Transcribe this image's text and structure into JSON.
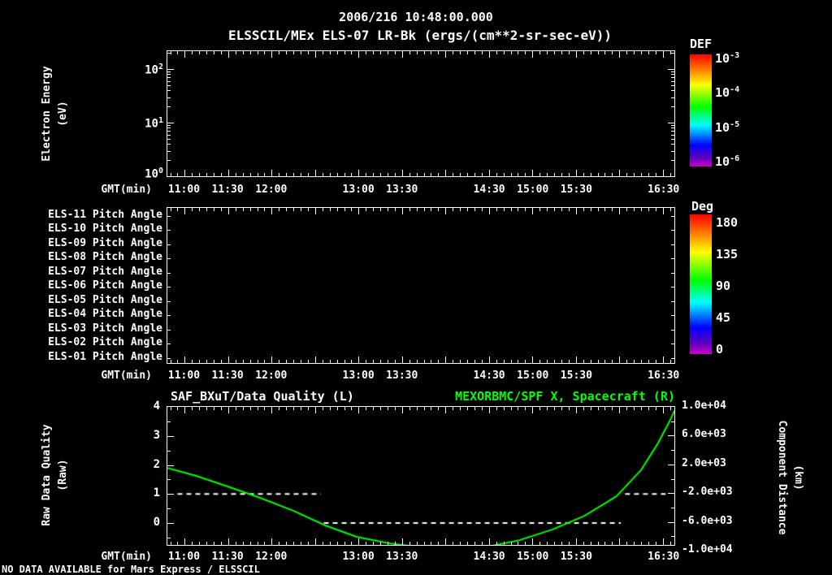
{
  "colors": {
    "background": "#000000",
    "foreground": "#ffffff",
    "green": "#00ff00",
    "rainbow_top_to_bottom": [
      "#ff0000 0%",
      "#ff7700 13%",
      "#ffff00 27%",
      "#00ff00 47%",
      "#00ffff 63%",
      "#0000ff 81%",
      "#6600bb 93%",
      "#cc00cc 100%"
    ]
  },
  "header": {
    "title": "2006/216 10:48:00.000",
    "subtitle": "ELSSCIL/MEx ELS-07 LR-Bk (ergs/(cm**2-sr-sec-eV))"
  },
  "time_axis": {
    "label": "GMT(min)",
    "start": "10:48",
    "span_min": 350,
    "minor_phase_min": 2,
    "minor_step_min": 5,
    "major_phase_min": 12,
    "major_step_min": 30,
    "labels": [
      {
        "min": 12,
        "text": "11:00"
      },
      {
        "min": 42,
        "text": "11:30"
      },
      {
        "min": 72,
        "text": "12:00"
      },
      {
        "min": 132,
        "text": "13:00"
      },
      {
        "min": 162,
        "text": "13:30"
      },
      {
        "min": 222,
        "text": "14:30"
      },
      {
        "min": 252,
        "text": "15:00"
      },
      {
        "min": 282,
        "text": "15:30"
      },
      {
        "min": 342,
        "text": "16:30"
      }
    ]
  },
  "panel1": {
    "ylabel": [
      "Electron Energy",
      "(eV)"
    ],
    "yticks": [
      {
        "base": "10",
        "exp": "2"
      },
      {
        "base": "10",
        "exp": "1"
      },
      {
        "base": "10",
        "exp": "0"
      }
    ],
    "colorbar": {
      "title": "DEF",
      "ticks": [
        {
          "base": "10",
          "exp": "-3"
        },
        {
          "base": "10",
          "exp": "-4"
        },
        {
          "base": "10",
          "exp": "-5"
        },
        {
          "base": "10",
          "exp": "-6"
        }
      ]
    }
  },
  "panel2": {
    "rows": [
      "ELS-11 Pitch Angle",
      "ELS-10 Pitch Angle",
      "ELS-09 Pitch Angle",
      "ELS-08 Pitch Angle",
      "ELS-07 Pitch Angle",
      "ELS-06 Pitch Angle",
      "ELS-05 Pitch Angle",
      "ELS-04 Pitch Angle",
      "ELS-03 Pitch Angle",
      "ELS-02 Pitch Angle",
      "ELS-01 Pitch Angle"
    ],
    "colorbar": {
      "title": "Deg",
      "ticks": [
        "180",
        "135",
        "90",
        "45",
        "0"
      ]
    }
  },
  "panel3": {
    "title_left": "SAF_BXuT/Data Quality (L)",
    "title_right": "MEXORBMC/SPF X, Spacecraft (R)",
    "ylabel_left": [
      "Raw Data Quality",
      "(Raw)"
    ],
    "ylabel_right": [
      "Component Distance",
      "(km)"
    ],
    "yticks_left": [
      "4",
      "3",
      "2",
      "1",
      "0"
    ],
    "yticks_right": [
      "1.0e+04",
      "6.0e+03",
      "2.0e+03",
      "-2.0e+03",
      "-6.0e+03",
      "-1.0e+04"
    ]
  },
  "footer": "NO DATA AVAILABLE for Mars Express / ELSSCIL",
  "chart_data": [
    {
      "type": "heatmap",
      "name": "electron-energy-spectrogram",
      "title": "ELSSCIL/MEx ELS-07 LR-Bk",
      "units": "ergs/(cm**2-sr-sec-eV)",
      "xlabel": "GMT(min)",
      "ylabel": "Electron Energy (eV)",
      "yscale": "log",
      "ylim": [
        1,
        230
      ],
      "x_start": "10:48",
      "x_tick_labels": [
        "11:00",
        "11:30",
        "12:00",
        "13:00",
        "13:30",
        "14:30",
        "15:00",
        "15:30",
        "16:30"
      ],
      "colorbar": {
        "label": "DEF",
        "scale": "log",
        "tick_values": [
          0.001,
          0.0001,
          1e-05,
          1e-06
        ]
      },
      "values": [],
      "note": "no data displayed"
    },
    {
      "type": "heatmap",
      "name": "pitch-angle-panel",
      "xlabel": "GMT(min)",
      "y_categories": [
        "ELS-11 Pitch Angle",
        "ELS-10 Pitch Angle",
        "ELS-09 Pitch Angle",
        "ELS-08 Pitch Angle",
        "ELS-07 Pitch Angle",
        "ELS-06 Pitch Angle",
        "ELS-05 Pitch Angle",
        "ELS-04 Pitch Angle",
        "ELS-03 Pitch Angle",
        "ELS-02 Pitch Angle",
        "ELS-01 Pitch Angle"
      ],
      "colorbar": {
        "label": "Deg",
        "tick_values": [
          180,
          135,
          90,
          45,
          0
        ]
      },
      "values": [],
      "note": "no data displayed"
    },
    {
      "type": "line",
      "name": "quality-and-spacecraft-distance",
      "xlabel": "GMT(min)",
      "x_minutes_after_start_span": 350,
      "ylabel_left": "Raw Data Quality (Raw)",
      "ylabel_right": "Component Distance (km)",
      "ylim_left": [
        0,
        4
      ],
      "ylim_right": [
        -10000,
        10000
      ],
      "yticks_left": [
        4,
        3,
        2,
        1,
        0
      ],
      "yticks_right": [
        10000,
        6000,
        2000,
        -2000,
        -6000,
        -10000
      ],
      "series": [
        {
          "name": "SAF_BXuT/Data Quality (L)",
          "axis": "left",
          "color": "#ffffff",
          "style": "dashed",
          "segments": [
            {
              "t0": 7,
              "t1": 106,
              "value": 1
            },
            {
              "t0": 108,
              "t1": 313,
              "value": 0
            },
            {
              "t0": 316,
              "t1": 344,
              "value": 1
            }
          ]
        },
        {
          "name": "MEXORBMC/SPF X, Spacecraft (R)",
          "axis": "right",
          "color": "#00ff00",
          "style": "solid",
          "points": [
            [
              0,
              1500
            ],
            [
              20,
              400
            ],
            [
              42,
              -1100
            ],
            [
              64,
              -2650
            ],
            [
              87,
              -4450
            ],
            [
              109,
              -6500
            ],
            [
              131,
              -8100
            ],
            [
              154,
              -9000
            ],
            [
              176,
              -9550
            ],
            [
              199,
              -9800
            ],
            [
              221,
              -9450
            ],
            [
              243,
              -8550
            ],
            [
              266,
              -7050
            ],
            [
              288,
              -5150
            ],
            [
              310,
              -2450
            ],
            [
              327,
              1200
            ],
            [
              338,
              4700
            ],
            [
              347,
              8100
            ],
            [
              350,
              9450
            ]
          ]
        }
      ]
    }
  ]
}
